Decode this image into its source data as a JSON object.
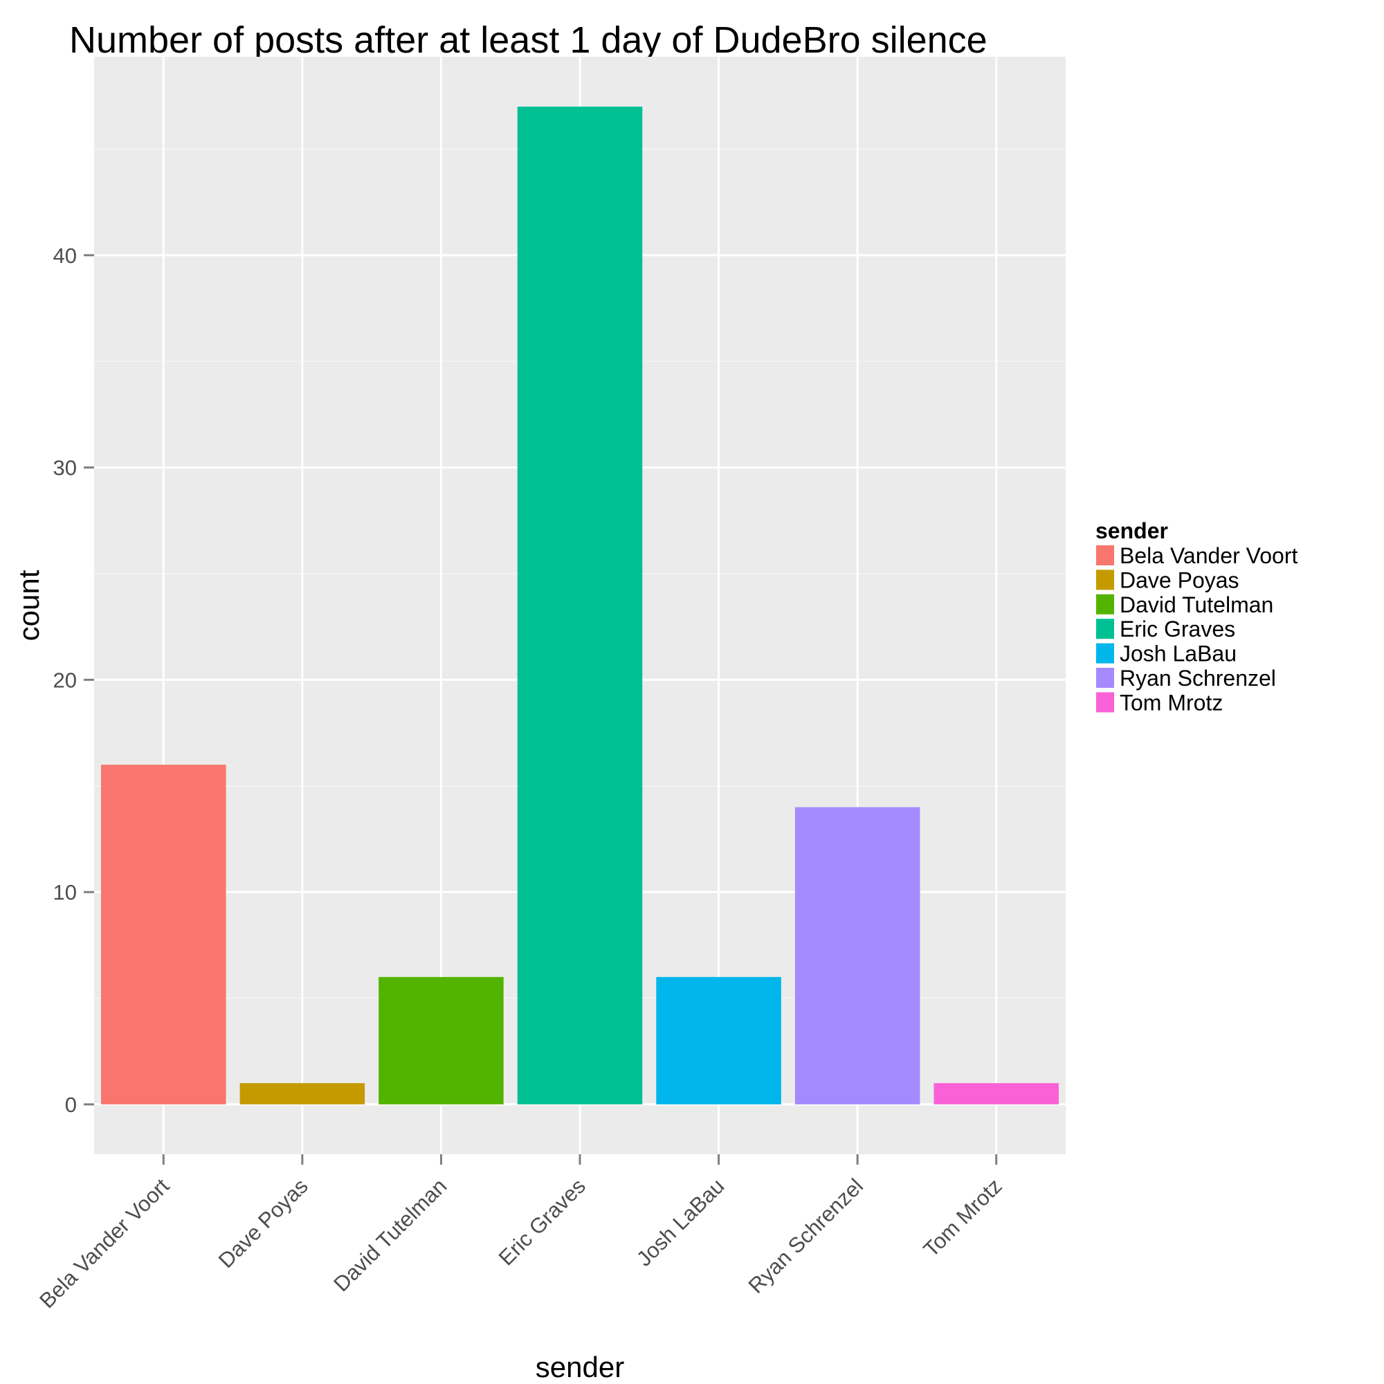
{
  "chart_data": {
    "type": "bar",
    "title": "Number of posts after at least 1 day of DudeBro silence",
    "xlabel": "sender",
    "ylabel": "count",
    "categories": [
      "Bela Vander Voort",
      "Dave Poyas",
      "David Tutelman",
      "Eric Graves",
      "Josh LaBau",
      "Ryan Schrenzel",
      "Tom Mrotz"
    ],
    "values": [
      16,
      1,
      6,
      47,
      6,
      14,
      1
    ],
    "colors": [
      "#F8766D",
      "#C49A00",
      "#53B400",
      "#00C094",
      "#00B6EB",
      "#A58AFF",
      "#FB61D7"
    ],
    "ylim": [
      -2.35,
      49.35
    ],
    "yticks": [
      0,
      10,
      20,
      30,
      40
    ],
    "grid": true,
    "legend": {
      "title": "sender",
      "position": "right",
      "entries": [
        "Bela Vander Voort",
        "Dave Poyas",
        "David Tutelman",
        "Eric Graves",
        "Josh LaBau",
        "Ryan Schrenzel",
        "Tom Mrotz"
      ]
    }
  }
}
